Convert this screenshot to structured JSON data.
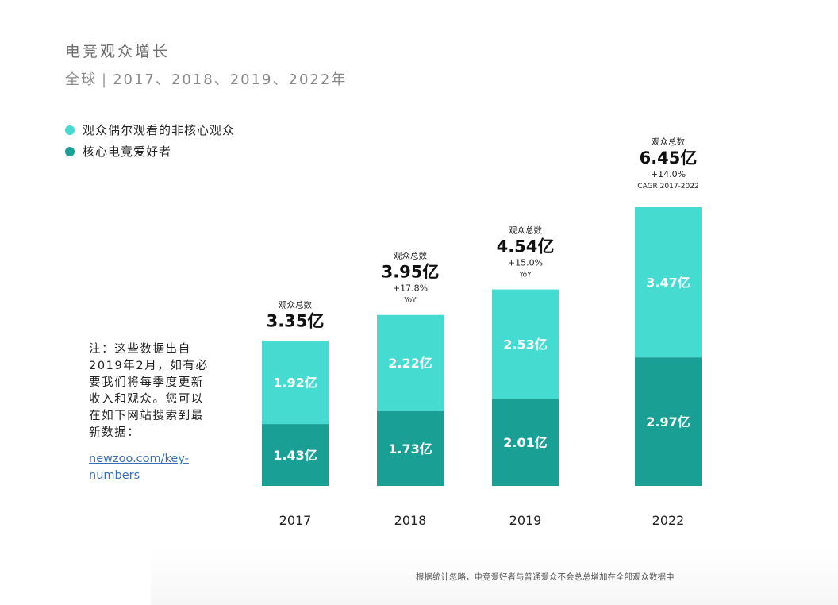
{
  "title": "电竞观众增长",
  "subtitle": {
    "region": "全球",
    "separator": "|",
    "years": "2017、2018、2019、2022年"
  },
  "legend": [
    {
      "label": "观众偶尔观看的非核心观众",
      "color": "#45dbd0"
    },
    {
      "label": "核心电竞爱好者",
      "color": "#1a9f94"
    }
  ],
  "note": {
    "text": "注：这些数据出自2019年2月，如有必要我们将每季度更新收入和观众。您可以在如下网站搜索到最新数据：",
    "link": "newzoo.com/key-numbers"
  },
  "footnote": "根据统计忽略，电竞爱好者与普通爱众不会总总增加在全部观众数据中",
  "chart_data": {
    "type": "bar",
    "stacked": true,
    "unit": "亿",
    "categories": [
      "2017",
      "2018",
      "2019",
      "2022"
    ],
    "series": [
      {
        "name": "核心电竞爱好者",
        "values": [
          1.43,
          1.73,
          2.01,
          2.97
        ],
        "labels": [
          "1.43亿",
          "1.73亿",
          "2.01亿",
          "2.97亿"
        ],
        "color": "#1a9f94"
      },
      {
        "name": "观众偶尔观看的非核心观众",
        "values": [
          1.92,
          2.22,
          2.53,
          3.47
        ],
        "labels": [
          "1.92亿",
          "2.22亿",
          "2.53亿",
          "3.47亿"
        ],
        "color": "#45dbd0"
      }
    ],
    "totals": [
      {
        "heading": "观众总数",
        "value": 3.35,
        "label": "3.35亿",
        "growth": "",
        "growth_note": ""
      },
      {
        "heading": "观众总数",
        "value": 3.95,
        "label": "3.95亿",
        "growth": "+17.8%",
        "growth_note": "YoY"
      },
      {
        "heading": "观众总数",
        "value": 4.54,
        "label": "4.54亿",
        "growth": "+15.0%",
        "growth_note": "YoY"
      },
      {
        "heading": "观众总数",
        "value": 6.45,
        "label": "6.45亿",
        "growth": "+14.0%",
        "growth_note": "CAGR 2017-2022"
      }
    ]
  }
}
